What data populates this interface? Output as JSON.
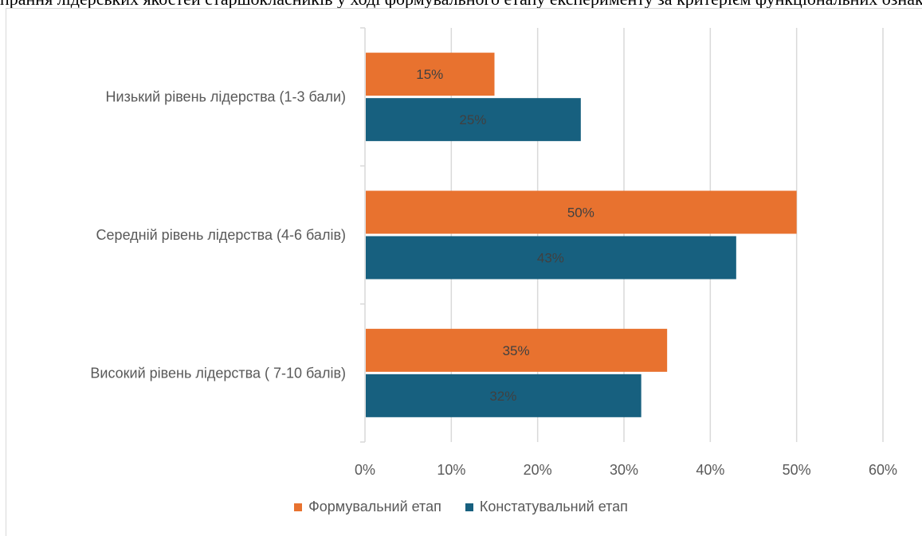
{
  "page": {
    "top_text": "прання лідерських якостей старшокласників у ході формувального етапу експерименту за критерієм функціональних ознак лідерів"
  },
  "colors": {
    "series_1": "#e8722f",
    "series_2": "#17607f",
    "grid": "#d9d9d9",
    "text": "#595959"
  },
  "chart_data": {
    "type": "bar",
    "orientation": "horizontal",
    "categories": [
      "Низький рівень лідерства (1-3 бали)",
      "Середній рівень лідерства (4-6 балів)",
      "Високий рівень лідерства ( 7-10 балів)"
    ],
    "series": [
      {
        "name": "Формувальний етап",
        "values": [
          15,
          50,
          35
        ],
        "labels": [
          "15%",
          "50%",
          "35%"
        ]
      },
      {
        "name": "Констатувальний етап",
        "values": [
          25,
          43,
          32
        ],
        "labels": [
          "25%",
          "43%",
          "32%"
        ]
      }
    ],
    "xlim": [
      0,
      60
    ],
    "xticks": [
      0,
      10,
      20,
      30,
      40,
      50,
      60
    ],
    "xtick_labels": [
      "0%",
      "10%",
      "20%",
      "30%",
      "40%",
      "50%",
      "60%"
    ],
    "grid": true,
    "legend_position": "bottom"
  }
}
